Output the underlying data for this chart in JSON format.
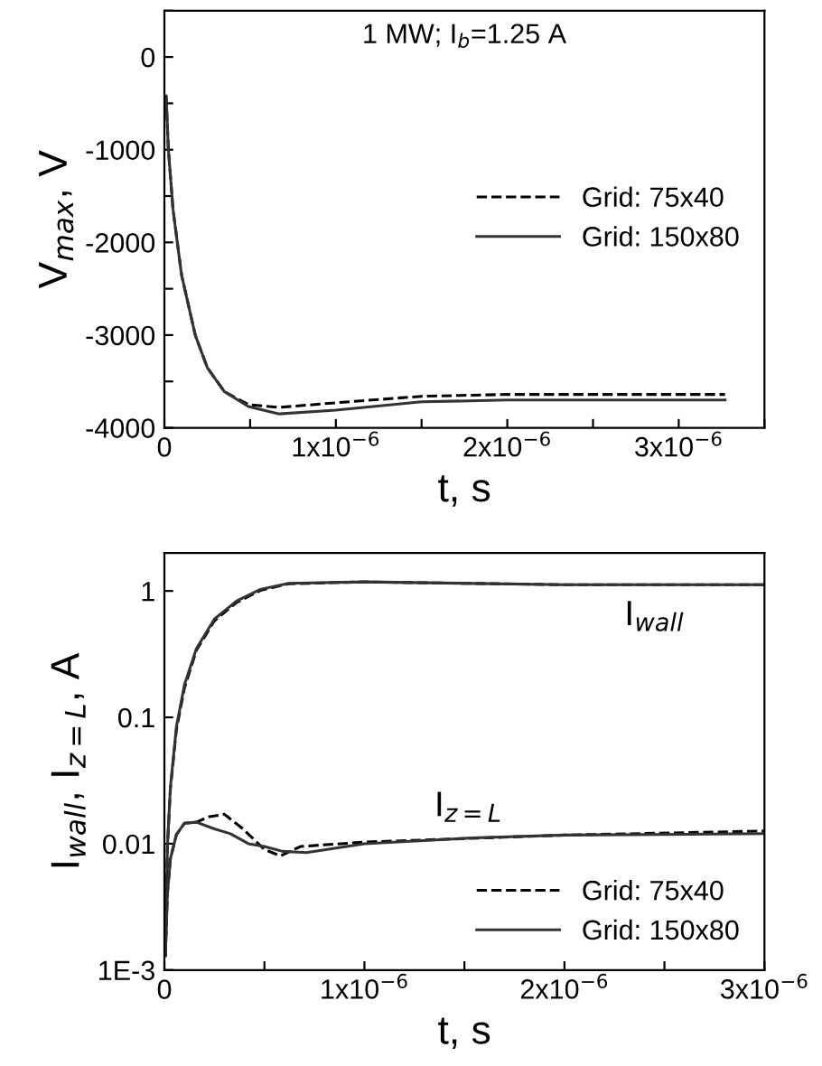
{
  "chart_data": [
    {
      "type": "line",
      "xlabel": "t, s",
      "ylabel": "V$_{max}$, V",
      "annotations": [
        "1 MW; I$_{b}$=1.25 A"
      ],
      "xlim": [
        0,
        3.5e-06
      ],
      "ylim": [
        -4000,
        500
      ],
      "xticks": [
        0,
        {
          "value": 5e-07,
          "label": null
        },
        {
          "value": 1e-06,
          "label": "1x10$^{−6}$"
        },
        {
          "value": 1.5e-06,
          "label": null
        },
        {
          "value": 2e-06,
          "label": "2x10$^{−6}$"
        },
        {
          "value": 2.5e-06,
          "label": null
        },
        {
          "value": 3e-06,
          "label": "3x10$^{−6}$"
        },
        {
          "value": 3.5e-06,
          "label": null
        }
      ],
      "yticks": [
        -4000,
        {
          "value": -3500,
          "label": null
        },
        -3000,
        {
          "value": -2500,
          "label": null
        },
        -2000,
        {
          "value": -1500,
          "label": null
        },
        -1000,
        {
          "value": -500,
          "label": null
        },
        0,
        {
          "value": 500,
          "label": null
        }
      ],
      "legend": "right",
      "grid": false,
      "series": [
        {
          "name": "Grid: 75x40",
          "color": "#000000",
          "line_style": "dashed",
          "x": [
            1e-08,
            2.3e-08,
            5e-08,
            1e-07,
            1.8e-07,
            2.5e-07,
            3.5e-07,
            4.9e-07,
            6.7e-07,
            1e-06,
            1.5e-06,
            2e-06,
            3.27e-06
          ],
          "values": [
            -420,
            -990,
            -1640,
            -2350,
            -3000,
            -3350,
            -3610,
            -3750,
            -3780,
            -3730,
            -3660,
            -3640,
            -3640
          ]
        },
        {
          "name": "Grid: 150x80",
          "color": "#333333",
          "line_style": "solid",
          "x": [
            1e-08,
            2.3e-08,
            5e-08,
            1e-07,
            1.8e-07,
            2.5e-07,
            3.5e-07,
            4.9e-07,
            6.7e-07,
            1e-06,
            1.5e-06,
            2e-06,
            3.27e-06
          ],
          "values": [
            -420,
            -990,
            -1640,
            -2350,
            -3000,
            -3350,
            -3610,
            -3770,
            -3850,
            -3810,
            -3720,
            -3700,
            -3700
          ]
        }
      ]
    },
    {
      "type": "line",
      "xlabel": "t, s",
      "ylabel": "I$_{wall}$, I$_{z=L}$, A",
      "log": "y",
      "xlim": [
        0,
        3e-06
      ],
      "ylim": [
        0.001,
        2
      ],
      "annotations": [
        {
          "text": "I$_{wall}$",
          "x": 2.3e-06,
          "y": 1.12
        },
        {
          "text": "I$_{z=L}$",
          "x": 1.35e-06,
          "y": 0.011
        }
      ],
      "xticks": [
        0,
        {
          "value": 5e-07,
          "label": null
        },
        {
          "value": 1e-06,
          "label": "1x10$^{−6}$"
        },
        {
          "value": 1.5e-06,
          "label": null
        },
        {
          "value": 2e-06,
          "label": "2x10$^{−6}$"
        },
        {
          "value": 2.5e-06,
          "label": null
        },
        {
          "value": 3e-06,
          "label": "3x10$^{−6}$"
        }
      ],
      "yticks": [
        {
          "value": 0.001,
          "label": "1E-3"
        },
        0.01,
        0.1,
        1
      ],
      "legend": "bottom right",
      "grid": false,
      "series": [
        {
          "name": "Grid: 75x40",
          "color": "#000000",
          "line_style": "dashed",
          "x": [
            5e-09,
            1.5e-08,
            3e-08,
            6e-08,
            1e-07,
            1.6e-07,
            2.5e-07,
            3.6e-07,
            4.8e-07,
            6.2e-07,
            1e-06,
            2e-06,
            3e-06
          ],
          "values": [
            0.0013,
            0.0094,
            0.027,
            0.08,
            0.17,
            0.34,
            0.58,
            0.81,
            1.01,
            1.14,
            1.18,
            1.12,
            1.12
          ]
        },
        {
          "name": "Grid: 150x80",
          "color": "#333333",
          "line_style": "solid",
          "x": [
            5e-09,
            1.5e-08,
            3e-08,
            6e-08,
            1e-07,
            1.6e-07,
            2.5e-07,
            3.6e-07,
            4.8e-07,
            6.2e-07,
            1e-06,
            2e-06,
            3e-06
          ],
          "values": [
            0.0013,
            0.0094,
            0.028,
            0.084,
            0.18,
            0.35,
            0.6,
            0.83,
            1.03,
            1.15,
            1.18,
            1.12,
            1.12
          ]
        },
        {
          "color": "#000000",
          "line_style": "dashed",
          "x": [
            5e-09,
            1.5e-08,
            3e-08,
            6e-08,
            1e-07,
            1.6e-07,
            2.2e-07,
            3e-07,
            3.9e-07,
            5e-07,
            5.8e-07,
            6.8e-07,
            1e-06,
            2e-06,
            3e-06
          ],
          "values": [
            0.0013,
            0.004,
            0.0076,
            0.0118,
            0.0145,
            0.0148,
            0.0163,
            0.0171,
            0.0132,
            0.009,
            0.008,
            0.0095,
            0.0103,
            0.0117,
            0.0126
          ]
        },
        {
          "color": "#333333",
          "line_style": "solid",
          "x": [
            5e-09,
            1.5e-08,
            3e-08,
            6e-08,
            1e-07,
            1.6e-07,
            2.5e-07,
            3.3e-07,
            4.2e-07,
            5e-07,
            5.9e-07,
            7.1e-07,
            1e-06,
            1.54e-06,
            2e-06,
            3e-06
          ],
          "values": [
            0.0013,
            0.004,
            0.0076,
            0.0118,
            0.0145,
            0.0148,
            0.0131,
            0.012,
            0.01,
            0.0095,
            0.0087,
            0.0085,
            0.01,
            0.0111,
            0.0117,
            0.012
          ]
        }
      ]
    }
  ]
}
